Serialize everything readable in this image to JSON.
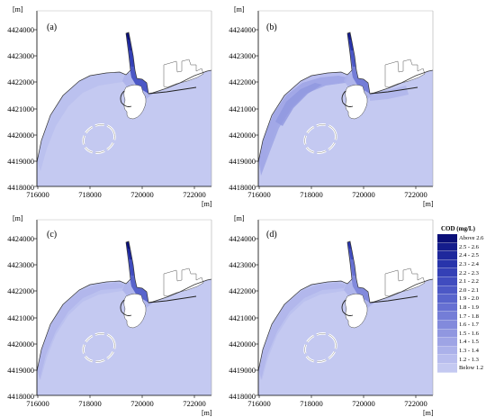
{
  "axis_unit": "[m]",
  "y_ticks": [
    "4424000",
    "4423000",
    "4422000",
    "4421000",
    "4420000",
    "4419000",
    "4418000"
  ],
  "x_ticks": [
    "716000",
    "718000",
    "720000",
    "722000"
  ],
  "panels": [
    {
      "label": "(a)",
      "variant": "a"
    },
    {
      "label": "(b)",
      "variant": "b"
    },
    {
      "label": "(c)",
      "variant": "c"
    },
    {
      "label": "(d)",
      "variant": "d"
    }
  ],
  "legend": {
    "title": "COD (mg/L)",
    "entries": [
      {
        "label": "Above 2.6",
        "color": "#0a0f78"
      },
      {
        "label": "2.5 - 2.6",
        "color": "#141c8c"
      },
      {
        "label": "2.4 - 2.5",
        "color": "#1e289c"
      },
      {
        "label": "2.3 - 2.4",
        "color": "#2834ab"
      },
      {
        "label": "2.2 - 2.3",
        "color": "#3440b6"
      },
      {
        "label": "2.1 - 2.2",
        "color": "#404cbf"
      },
      {
        "label": "2.0 - 2.1",
        "color": "#4c58c6"
      },
      {
        "label": "1.9 - 2.0",
        "color": "#5864cc"
      },
      {
        "label": "1.8 - 1.9",
        "color": "#6670d2"
      },
      {
        "label": "1.7 - 1.8",
        "color": "#747dd7"
      },
      {
        "label": "1.6 - 1.7",
        "color": "#828adc"
      },
      {
        "label": "1.5 - 1.6",
        "color": "#9097e0"
      },
      {
        "label": "1.4 - 1.5",
        "color": "#9ea4e5"
      },
      {
        "label": "1.3 - 1.4",
        "color": "#abb1ea"
      },
      {
        "label": "1.2 - 1.3",
        "color": "#b8bdee"
      },
      {
        "label": "Below 1.2",
        "color": "#c4c9f1"
      }
    ]
  }
}
